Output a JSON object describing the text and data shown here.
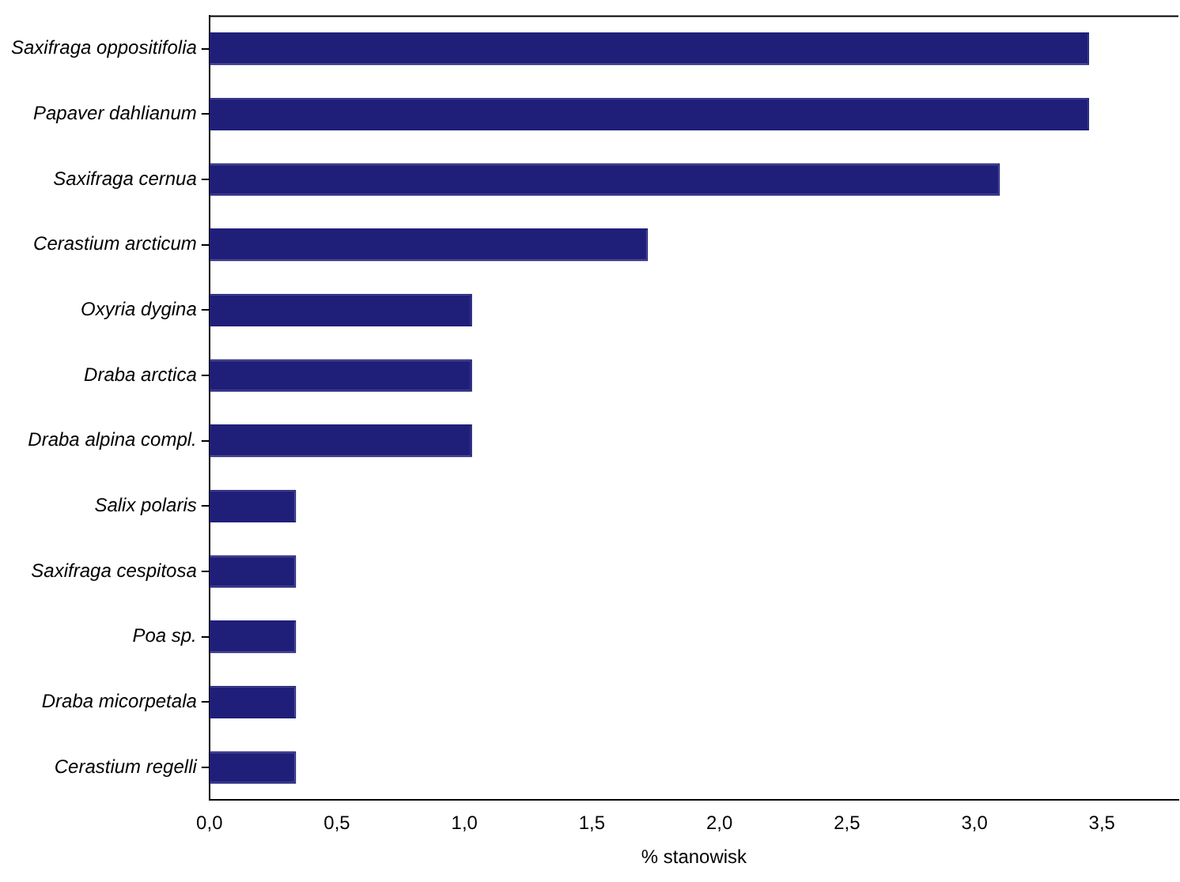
{
  "chart_data": {
    "type": "bar",
    "orientation": "horizontal",
    "xlabel": "% stanowisk",
    "categories": [
      "Saxifraga oppositifolia",
      "Papaver dahlianum",
      "Saxifraga cernua",
      "Cerastium arcticum",
      "Oxyria dygina",
      "Draba arctica",
      "Draba alpina compl.",
      "Salix polaris",
      "Saxifraga cespitosa",
      "Poa sp.",
      "Draba micorpetala",
      "Cerastium regelli"
    ],
    "values": [
      3.45,
      3.45,
      3.1,
      1.72,
      1.03,
      1.03,
      1.03,
      0.34,
      0.34,
      0.34,
      0.34,
      0.34
    ],
    "color": "#1f1f7a",
    "xlim": [
      0,
      3.8
    ],
    "xticks": [
      {
        "value": 0,
        "label": "0,0"
      },
      {
        "value": 0.5,
        "label": "0,5"
      },
      {
        "value": 1,
        "label": "1,0"
      },
      {
        "value": 1.5,
        "label": "1,5"
      },
      {
        "value": 2,
        "label": "2,0"
      },
      {
        "value": 2.5,
        "label": "2,5"
      },
      {
        "value": 3,
        "label": "3,0"
      },
      {
        "value": 3.5,
        "label": "3,5"
      }
    ],
    "grid": false,
    "legend": false
  }
}
